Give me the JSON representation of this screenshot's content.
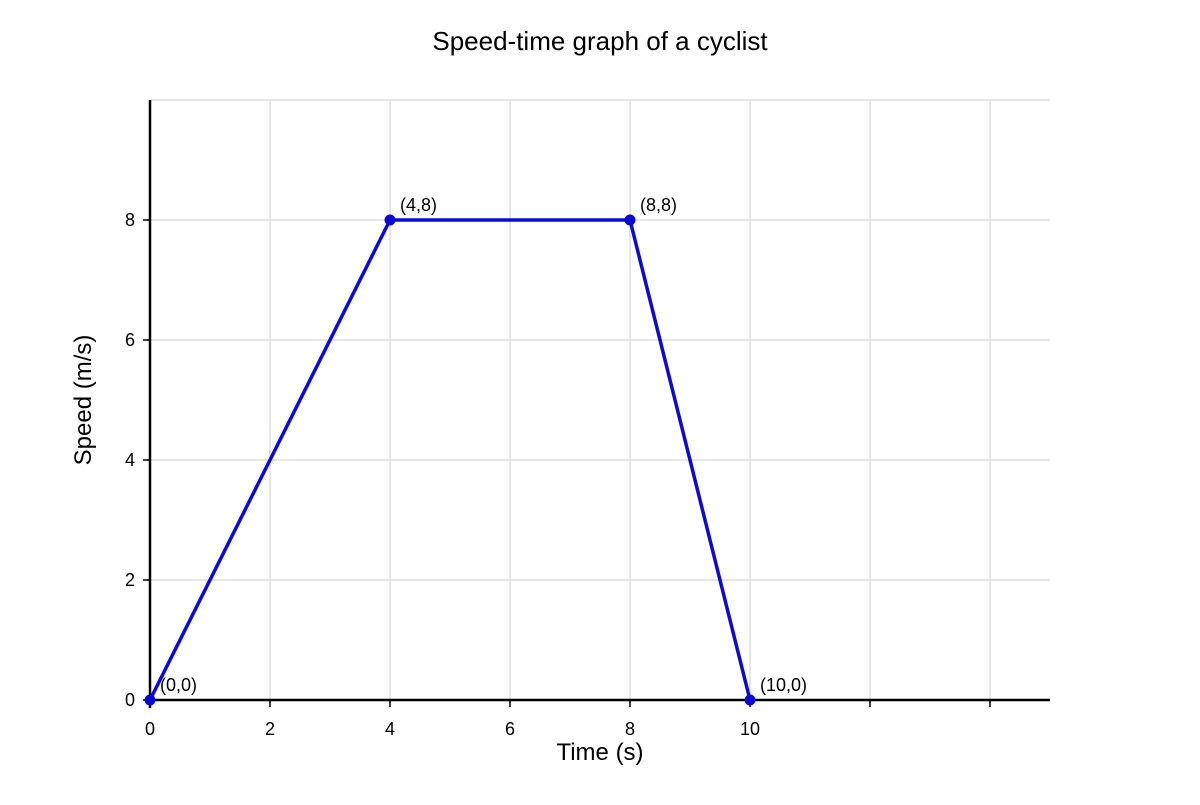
{
  "chart_data": {
    "type": "line",
    "title": "Speed-time graph of a cyclist",
    "xlabel": "Time (s)",
    "ylabel": "Speed (m/s)",
    "xlim": [
      0,
      15
    ],
    "ylim": [
      0,
      10
    ],
    "x_ticks": [
      0,
      2,
      4,
      6,
      8,
      10
    ],
    "y_ticks": [
      0,
      2,
      4,
      6,
      8
    ],
    "x_grid": [
      0,
      2,
      4,
      6,
      8,
      10,
      12,
      14
    ],
    "y_grid": [
      2,
      4,
      6,
      8,
      10
    ],
    "grid": true,
    "legend": "none",
    "series": [
      {
        "color": "#0a0ad6",
        "x": [
          0,
          4,
          8,
          10
        ],
        "y": [
          0,
          8,
          8,
          0
        ]
      }
    ],
    "annotations": [
      "(0,0)",
      "(4,8)",
      "(8,8)",
      "(10,0)"
    ]
  }
}
